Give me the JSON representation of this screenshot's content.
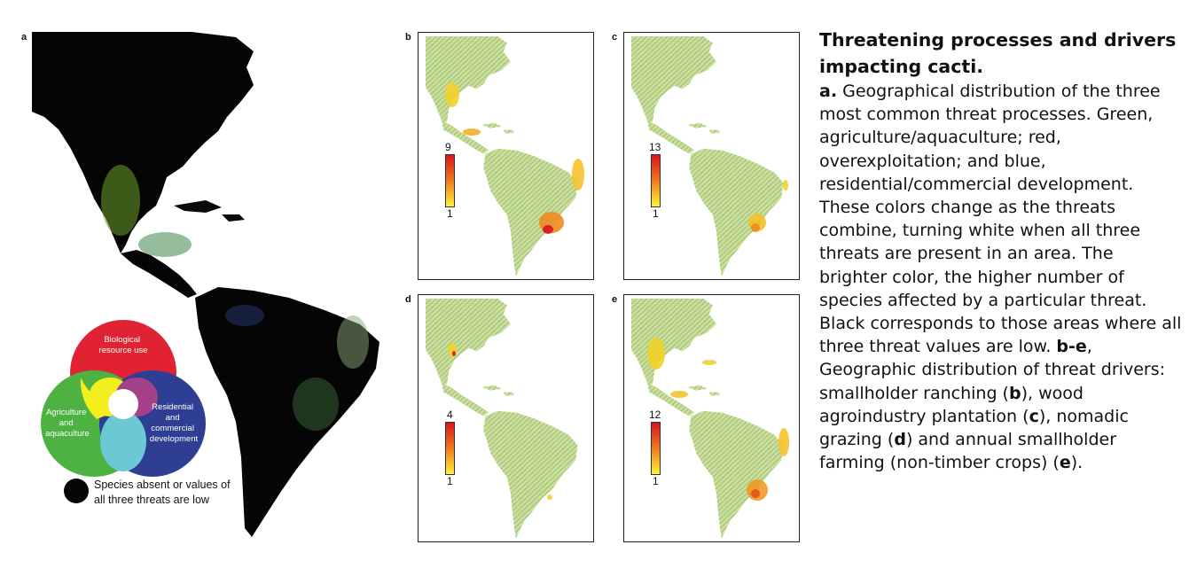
{
  "panels": {
    "a": {
      "letter": "a",
      "venn": {
        "top_label": [
          "Biological",
          "resource use"
        ],
        "left_label": [
          "Agriculture",
          "and",
          "aquaculture"
        ],
        "right_label": [
          "Residential",
          "and",
          "commercial",
          "development"
        ],
        "colors": {
          "red": "#e02232",
          "green": "#4db242",
          "blue": "#2e3e93",
          "yellow": "#f5ee1e",
          "purple": "#a4418a",
          "cyan": "#6cc8d5"
        }
      },
      "legend": [
        "Species absent or values of",
        "all three threats are low"
      ]
    },
    "b": {
      "letter": "b",
      "scale_max": "9",
      "scale_min": "1"
    },
    "c": {
      "letter": "c",
      "scale_max": "13",
      "scale_min": "1"
    },
    "d": {
      "letter": "d",
      "scale_max": "4",
      "scale_min": "1"
    },
    "e": {
      "letter": "e",
      "scale_max": "12",
      "scale_min": "1"
    }
  },
  "caption": {
    "title": "Threatening processes and drivers impacting cacti.",
    "a_label": "a.",
    "a_text": "Geographical distribution of the three most common threat processes. Green, agriculture/aquaculture; red, overexploitation; and blue, residential/commercial development. These colors change as the threats combine, turning white when all three threats are present in an area. The brighter color, the higher number of species affected by a particular threat. Black corresponds to those areas where all three threat values are low.",
    "be_label": "b-e",
    "be_text": ", Geographic distribution of threat drivers: smallholder ranching (",
    "b": "b",
    "t1": "), wood agroindustry plantation (",
    "c": "c",
    "t2": "), nomadic grazing (",
    "d": "d",
    "t3": ") and annual smallholder farming (non-timber crops) (",
    "e": "e",
    "t4": ")."
  }
}
